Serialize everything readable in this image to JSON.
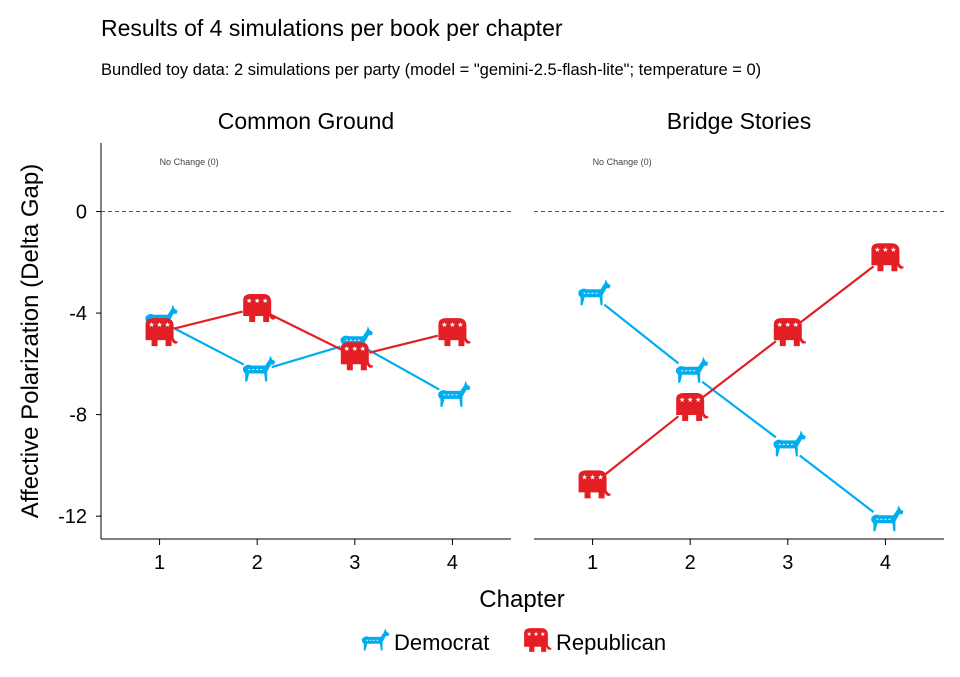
{
  "chart_data": [
    {
      "type": "line",
      "title": "Results of 4 simulations per book per chapter",
      "subtitle": "Bundled toy data: 2 simulations per party (model = \"gemini-2.5-flash-lite\"; temperature = 0)",
      "panel": "Common Ground",
      "xlabel": "Chapter",
      "ylabel": "Affective Polarization (Delta Gap)",
      "x": [
        1,
        2,
        3,
        4
      ],
      "xticks": [
        "1",
        "2",
        "3",
        "4"
      ],
      "yticks": [
        0,
        -4,
        -8,
        -12
      ],
      "ytick_labels": [
        "0",
        "-4",
        "-8",
        "-12"
      ],
      "ylim": [
        -12.9,
        2.7
      ],
      "xlim": [
        0.4,
        4.6
      ],
      "reference_line": {
        "y": 0,
        "label": "No Change (0)",
        "style": "dashed"
      },
      "series": [
        {
          "name": "Democrat",
          "color": "#00AEEF",
          "icon": "donkey-icon",
          "values": [
            -4.3,
            -6.3,
            -5.15,
            -7.3
          ]
        },
        {
          "name": "Republican",
          "color": "#E31E24",
          "icon": "elephant-icon",
          "values": [
            -4.75,
            -3.8,
            -5.7,
            -4.75
          ]
        }
      ],
      "grid": false,
      "legend": "bottom"
    },
    {
      "type": "line",
      "panel": "Bridge Stories",
      "x": [
        1,
        2,
        3,
        4
      ],
      "xticks": [
        "1",
        "2",
        "3",
        "4"
      ],
      "ylim": [
        -12.9,
        2.7
      ],
      "xlim": [
        0.4,
        4.6
      ],
      "reference_line": {
        "y": 0,
        "label": "No Change (0)",
        "style": "dashed"
      },
      "series": [
        {
          "name": "Democrat",
          "color": "#00AEEF",
          "icon": "donkey-icon",
          "values": [
            -3.3,
            -6.35,
            -9.25,
            -12.2
          ]
        },
        {
          "name": "Republican",
          "color": "#E31E24",
          "icon": "elephant-icon",
          "values": [
            -10.75,
            -7.7,
            -4.75,
            -1.8
          ]
        }
      ],
      "grid": false
    }
  ],
  "legend": {
    "items": [
      "Democrat",
      "Republican"
    ]
  }
}
